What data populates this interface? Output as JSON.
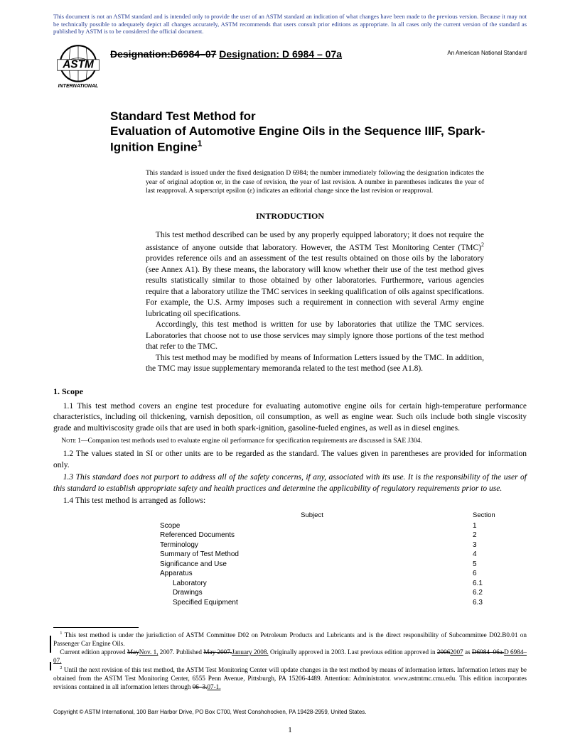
{
  "topNotice": "This document is not an ASTM standard and is intended only to provide the user of an ASTM standard an indication of what changes have been made to the previous version. Because it may not be technically possible to adequately depict all changes accurately, ASTM recommends that users consult prior editions as appropriate. In all cases only the current version of the standard as published by ASTM is to be considered the official document.",
  "designation": {
    "strike": "Designation:D6984–07",
    "new": "Designation: D 6984 – 07a"
  },
  "ansBadge": "An American National Standard",
  "title": {
    "line1": "Standard Test Method for",
    "line2": "Evaluation of Automotive Engine Oils in the Sequence IIIF, Spark-Ignition Engine",
    "sup": "1"
  },
  "issueNote": "This standard is issued under the fixed designation D 6984; the number immediately following the designation indicates the year of original adoption or, in the case of revision, the year of last revision. A number in parentheses indicates the year of last reapproval. A superscript epsilon (ε) indicates an editorial change since the last revision or reapproval.",
  "introHeading": "INTRODUCTION",
  "intro": {
    "p1a": "This test method described can be used by any properly equipped laboratory; it does not require the assistance of anyone outside that laboratory. However, the ASTM Test Monitoring Center (TMC)",
    "p1sup": "2",
    "p1b": " provides reference oils and an assessment of the test results obtained on those oils by the laboratory (see Annex A1). By these means, the laboratory will know whether their use of the test method gives results statistically similar to those obtained by other laboratories. Furthermore, various agencies require that a laboratory utilize the TMC services in seeking qualification of oils against specifications. For example, the U.S. Army imposes such a requirement in connection with several Army engine lubricating oil specifications.",
    "p2": "Accordingly, this test method is written for use by laboratories that utilize the TMC services. Laboratories that choose not to use those services may simply ignore those portions of the test method that refer to the TMC.",
    "p3": "This test method may be modified by means of Information Letters issued by the TMC. In addition, the TMC may issue supplementary memoranda related to the test method (see A1.8)."
  },
  "scopeHeading": "1. Scope",
  "scope": {
    "s11": "1.1 This test method covers an engine test procedure for evaluating automotive engine oils for certain high-temperature performance characteristics, including oil thickening, varnish deposition, oil consumption, as well as engine wear. Such oils include both single viscosity grade and multiviscosity grade oils that are used in both spark-ignition, gasoline-fueled engines, as well as in diesel engines.",
    "note1Label": "Note 1—",
    "note1": "Companion test methods used to evaluate engine oil performance for specification requirements are discussed in SAE J304.",
    "s12": "1.2 The values stated in SI or other units are to be regarded as the standard. The values given in parentheses are provided for information only.",
    "s13": "1.3 This standard does not purport to address all of the safety concerns, if any, associated with its use. It is the responsibility of the user of this standard to establish appropriate safety and health practices and determine the applicability of regulatory requirements prior to use.",
    "s14": "1.4 This test method is arranged as follows:"
  },
  "toc": {
    "subjectLabel": "Subject",
    "sectionLabel": "Section",
    "rows": [
      {
        "label": "Scope",
        "num": "1",
        "indent": 0
      },
      {
        "label": "Referenced Documents",
        "num": "2",
        "indent": 0
      },
      {
        "label": "Terminology",
        "num": "3",
        "indent": 0
      },
      {
        "label": "Summary of Test Method",
        "num": "4",
        "indent": 0
      },
      {
        "label": "Significance and Use",
        "num": "5",
        "indent": 0
      },
      {
        "label": "Apparatus",
        "num": "6",
        "indent": 0
      },
      {
        "label": "Laboratory",
        "num": "6.1",
        "indent": 1
      },
      {
        "label": "Drawings",
        "num": "6.2",
        "indent": 1
      },
      {
        "label": "Specified Equipment",
        "num": "6.3",
        "indent": 1
      }
    ]
  },
  "footnotes": {
    "f1sup": "1",
    "f1": " This test method is under the jurisdiction of ASTM Committee D02 on Petroleum Products and Lubricants and is the direct responsibility of Subcommittee D02.B0.01 on Passenger Car Engine Oils.",
    "f1b_pre": "Current edition approved ",
    "f1b_strike1": "May",
    "f1b_under1": "Nov. 1,",
    "f1b_mid": " 2007. Published ",
    "f1b_strike2": "May 2007.",
    "f1b_under2": "January 2008.",
    "f1b_mid2": " Originally approved in 2003. Last previous edition approved in ",
    "f1b_strike3": "2006",
    "f1b_under3": "2007",
    "f1b_mid3": " as ",
    "f1b_strike4": "D6984–06a.",
    "f1b_under4": "D 6984–07.",
    "f2sup": "2",
    "f2a": " Until the next revision of this test method, the ASTM Test Monitoring Center will update changes in the test method by means of information letters. Information letters may be obtained from the ASTM Test Monitoring Center, 6555 Penn Avenue, Pittsburgh, PA 15206-4489. Attention: Administrator. www.astmtmc.cmu.edu. This edition incorporates revisions contained in all information letters through ",
    "f2_strike": "06–3.",
    "f2_under": "07-1."
  },
  "copyright": "Copyright © ASTM International, 100 Barr Harbor Drive, PO Box C700, West Conshohocken, PA 19428-2959, United States.",
  "pageNum": "1",
  "logo": {
    "text1": "ASTM",
    "text2": "INTERNATIONAL"
  }
}
